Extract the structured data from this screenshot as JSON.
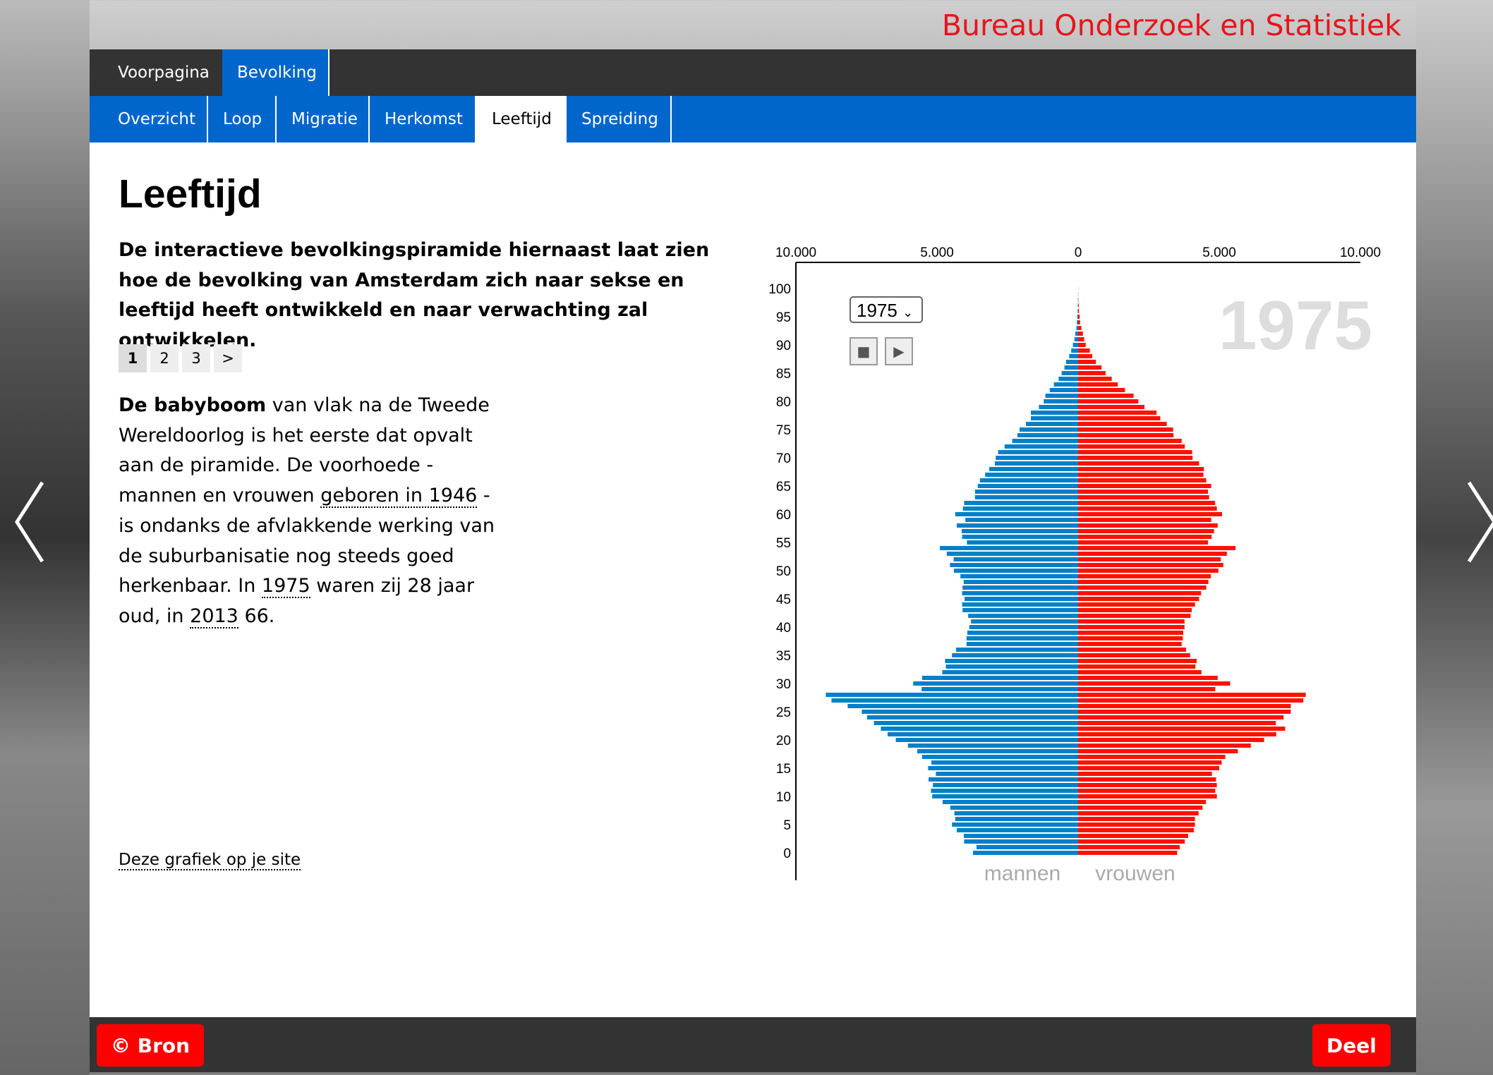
{
  "brand": "Bureau Onderzoek en Statistiek",
  "nav": {
    "main": [
      "Voorpagina",
      "Bevolking"
    ],
    "active_main": "Bevolking",
    "sub": [
      "Overzicht",
      "Loop",
      "Migratie",
      "Herkomst",
      "Leeftijd",
      "Spreiding"
    ],
    "active_sub": "Leeftijd"
  },
  "page": {
    "title": "Leeftijd",
    "intro": "De interactieve bevolkingspiramide hiernaast laat zien hoe de bevolking van Amsterdam zich naar sekse en leeftijd heeft ontwikkeld en naar verwachting zal ontwikkelen.",
    "pager": [
      "1",
      "2",
      "3",
      ">"
    ],
    "body": {
      "bold": "De babyboom",
      "t1": " van vlak na de Tweede Wereldoorlog is het eerste dat opvalt aan de piramide. De voorhoede - mannen en vrouwen ",
      "l1": "geboren in 1946",
      "t2": " - is ondanks de afvlakkende werking van de suburbanisatie nog steeds goed herkenbaar. In ",
      "l2": "1975",
      "t3": " waren zij 28 jaar oud, in ",
      "l3": "2013",
      "t4": " 66."
    },
    "embed_link": "Deze grafiek op je site"
  },
  "controls": {
    "year_select": "1975",
    "year_display": "1975",
    "stop_icon": "stop-icon",
    "play_icon": "play-icon"
  },
  "footer": {
    "source": "© Bron",
    "share": "Deel"
  },
  "colors": {
    "male": "#0080c8",
    "female": "#ff1100",
    "brand": "#e8141b",
    "nav_blue": "#0066cc"
  },
  "chart_data": {
    "type": "bar",
    "orientation": "horizontal-pyramid",
    "x_ticks": [
      "10.000",
      "5.000",
      "0",
      "5.000",
      "10.000"
    ],
    "xlim": [
      -10000,
      10000
    ],
    "y_ticks": [
      "0",
      "5",
      "10",
      "15",
      "20",
      "25",
      "30",
      "35",
      "40",
      "45",
      "50",
      "55",
      "60",
      "65",
      "70",
      "75",
      "80",
      "85",
      "90",
      "95",
      "100"
    ],
    "ylim": [
      0,
      100
    ],
    "series_labels": [
      "mannen",
      "vrouwen"
    ],
    "ages": "0-100",
    "series": [
      {
        "name": "mannen",
        "values": [
          3725,
          3600,
          4040,
          4050,
          4300,
          4470,
          4355,
          4385,
          4530,
          4800,
          5170,
          5215,
          5145,
          5300,
          5040,
          5315,
          5200,
          5530,
          5700,
          6030,
          6460,
          6750,
          6990,
          7235,
          7480,
          7665,
          8165,
          8740,
          8940,
          5545,
          5845,
          5530,
          4815,
          4685,
          4715,
          4470,
          4325,
          3955,
          3955,
          3925,
          3855,
          3795,
          3895,
          4095,
          4110,
          4025,
          4110,
          4095,
          4055,
          4170,
          4400,
          4540,
          4410,
          4655,
          4900,
          3940,
          4110,
          4125,
          4300,
          3995,
          4355,
          4085,
          4040,
          3655,
          3655,
          3555,
          3480,
          3295,
          3150,
          2950,
          2920,
          2835,
          2605,
          2335,
          2150,
          2075,
          1850,
          1675,
          1675,
          1390,
          1220,
          1160,
          1005,
          860,
          690,
          585,
          485,
          430,
          315,
          245,
          185,
          130,
          100,
          60,
          45,
          30,
          15,
          10,
          5,
          3,
          2
        ]
      },
      {
        "name": "vrouwen",
        "values": [
          3510,
          3600,
          3780,
          3900,
          4100,
          4140,
          4140,
          4270,
          4410,
          4530,
          4915,
          4860,
          4915,
          4885,
          4740,
          5000,
          5085,
          5215,
          5660,
          6120,
          6590,
          7020,
          7335,
          7005,
          7280,
          7535,
          7535,
          7980,
          8065,
          4860,
          5385,
          4945,
          4370,
          4155,
          4200,
          3970,
          3825,
          3670,
          3710,
          3725,
          3770,
          3770,
          3985,
          4025,
          4140,
          4285,
          4355,
          4540,
          4615,
          4700,
          4970,
          5145,
          5055,
          5270,
          5575,
          4600,
          4730,
          4815,
          4945,
          4715,
          5100,
          4915,
          4855,
          4640,
          4600,
          4715,
          4540,
          4440,
          4455,
          4285,
          4055,
          4040,
          3780,
          3670,
          3380,
          3365,
          3140,
          2910,
          2780,
          2350,
          2135,
          1965,
          1660,
          1405,
          1190,
          975,
          830,
          630,
          500,
          415,
          270,
          215,
          170,
          115,
          70,
          55,
          30,
          20,
          10,
          5,
          3
        ]
      }
    ]
  }
}
